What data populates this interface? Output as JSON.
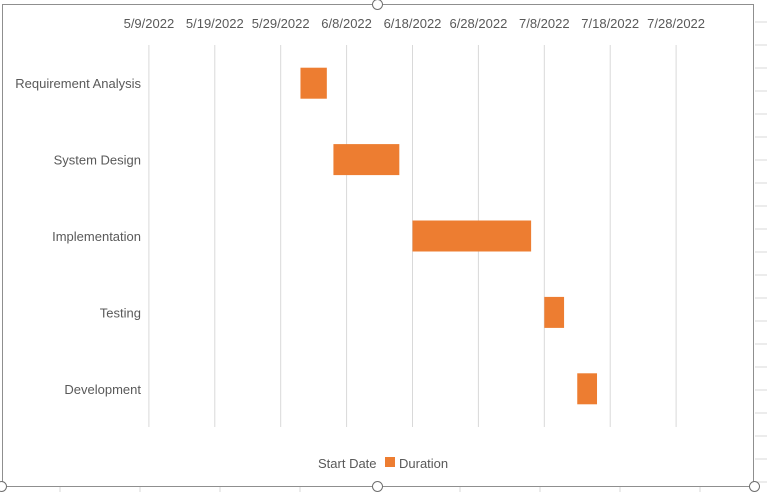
{
  "chart_data": {
    "type": "bar",
    "orientation": "horizontal-stacked-gantt",
    "categories": [
      "Requirement Analysis",
      "System Design",
      "Implementation",
      "Testing",
      "Development"
    ],
    "x_axis": {
      "position": "top",
      "min": "2022-04-29",
      "max": "2022-08-07",
      "tick_labels": [
        "5/9/2022",
        "5/19/2022",
        "5/29/2022",
        "6/8/2022",
        "6/18/2022",
        "6/28/2022",
        "7/8/2022",
        "7/18/2022",
        "7/28/2022"
      ],
      "tick_values": [
        "2022-05-09",
        "2022-05-19",
        "2022-05-29",
        "2022-06-08",
        "2022-06-18",
        "2022-06-28",
        "2022-07-08",
        "2022-07-18",
        "2022-07-28"
      ]
    },
    "series": [
      {
        "name": "Start Date",
        "visible": false,
        "values": [
          "2022-06-01",
          "2022-06-06",
          "2022-06-18",
          "2022-07-08",
          "2022-07-13"
        ]
      },
      {
        "name": "Duration",
        "color": "#ED7D31",
        "values": [
          4,
          10,
          18,
          3,
          3
        ]
      }
    ],
    "gridlines": "vertical",
    "legend": "bottom"
  }
}
